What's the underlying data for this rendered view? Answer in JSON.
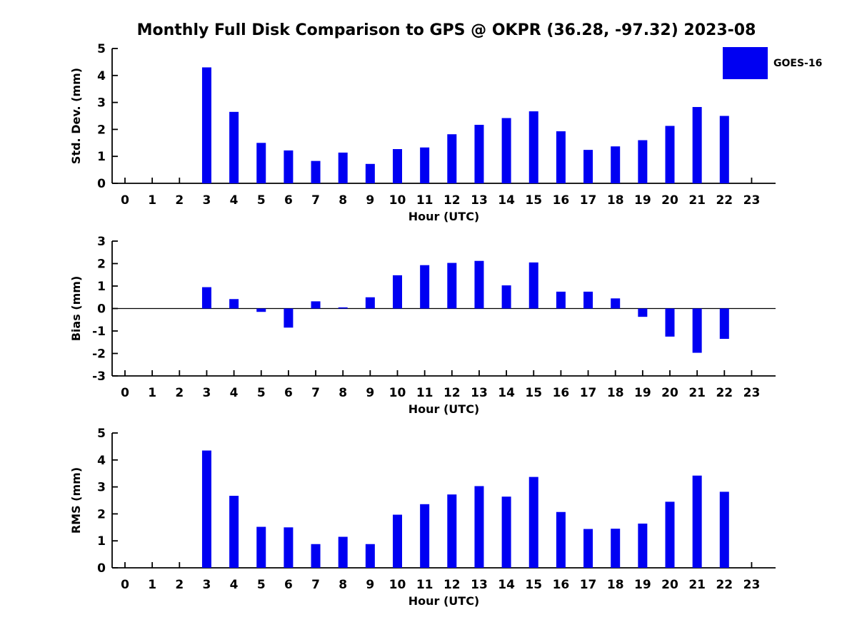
{
  "title": "Monthly Full Disk Comparison to GPS @ OKPR (36.28, -97.32) 2023-08",
  "legend": {
    "label": "GOES-16",
    "color": "#0000f2",
    "position": "top-right"
  },
  "colors": {
    "bar": "#0000f2",
    "axis": "#000000",
    "text": "#000000",
    "background": "#ffffff"
  },
  "chart_data": [
    {
      "type": "bar",
      "id": "std-dev",
      "series_name": "GOES-16",
      "ylabel": "Std. Dev. (mm)",
      "xlabel": "Hour (UTC)",
      "ylim": [
        0,
        5
      ],
      "yticks": [
        0,
        1,
        2,
        3,
        4,
        5
      ],
      "grid": false,
      "categories": [
        0,
        1,
        2,
        3,
        4,
        5,
        6,
        7,
        8,
        9,
        10,
        11,
        12,
        13,
        14,
        15,
        16,
        17,
        18,
        19,
        20,
        21,
        22,
        23
      ],
      "values": [
        0,
        0,
        0,
        4.3,
        2.65,
        1.5,
        1.22,
        0.83,
        1.14,
        0.72,
        1.27,
        1.33,
        1.82,
        2.17,
        2.42,
        2.67,
        1.93,
        1.24,
        1.37,
        1.6,
        2.13,
        2.83,
        2.5,
        0
      ]
    },
    {
      "type": "bar",
      "id": "bias",
      "series_name": "GOES-16",
      "ylabel": "Bias (mm)",
      "xlabel": "Hour (UTC)",
      "ylim": [
        -3,
        3
      ],
      "yticks": [
        -3,
        -2,
        -1,
        0,
        1,
        2,
        3
      ],
      "grid": false,
      "zero_line": true,
      "categories": [
        0,
        1,
        2,
        3,
        4,
        5,
        6,
        7,
        8,
        9,
        10,
        11,
        12,
        13,
        14,
        15,
        16,
        17,
        18,
        19,
        20,
        21,
        22,
        23
      ],
      "values": [
        0,
        0,
        0,
        0.95,
        0.42,
        -0.15,
        -0.85,
        0.32,
        0.05,
        0.5,
        1.48,
        1.93,
        2.03,
        2.12,
        1.03,
        2.05,
        0.75,
        0.75,
        0.45,
        -0.37,
        -1.25,
        -1.97,
        -1.35,
        0
      ]
    },
    {
      "type": "bar",
      "id": "rms",
      "series_name": "GOES-16",
      "ylabel": "RMS (mm)",
      "xlabel": "Hour (UTC)",
      "ylim": [
        0,
        5
      ],
      "yticks": [
        0,
        1,
        2,
        3,
        4,
        5
      ],
      "grid": false,
      "categories": [
        0,
        1,
        2,
        3,
        4,
        5,
        6,
        7,
        8,
        9,
        10,
        11,
        12,
        13,
        14,
        15,
        16,
        17,
        18,
        19,
        20,
        21,
        22,
        23
      ],
      "values": [
        0,
        0,
        0,
        4.35,
        2.67,
        1.52,
        1.5,
        0.88,
        1.15,
        0.88,
        1.97,
        2.36,
        2.72,
        3.03,
        2.64,
        3.37,
        2.07,
        1.44,
        1.45,
        1.64,
        2.45,
        3.42,
        2.82,
        0
      ]
    }
  ]
}
